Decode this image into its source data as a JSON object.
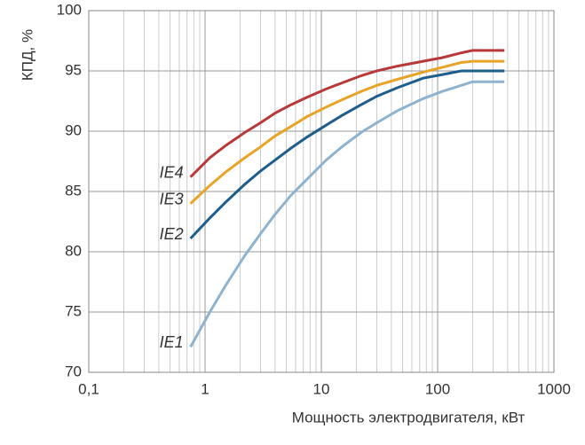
{
  "chart_data": {
    "type": "line",
    "x_label": "Мощность электродвигателя, кВт",
    "y_label": "КПД, %",
    "x": [
      0.75,
      1.1,
      1.5,
      2.2,
      3,
      4,
      5.5,
      7.5,
      11,
      15,
      22,
      30,
      45,
      75,
      110,
      160,
      200,
      375
    ],
    "series": [
      {
        "name": "IE1",
        "color": "#8fb3cf",
        "values": [
          72.1,
          75.0,
          77.2,
          79.7,
          81.5,
          83.1,
          84.7,
          86.0,
          87.6,
          88.7,
          89.9,
          90.7,
          91.7,
          92.7,
          93.3,
          93.8,
          94.1,
          94.1
        ]
      },
      {
        "name": "IE2",
        "color": "#1f5d8c",
        "values": [
          81.1,
          82.8,
          84.1,
          85.6,
          86.7,
          87.6,
          88.6,
          89.5,
          90.5,
          91.3,
          92.2,
          92.9,
          93.6,
          94.4,
          94.7,
          95.0,
          95.0,
          95.0
        ]
      },
      {
        "name": "IE3",
        "color": "#e8a427",
        "values": [
          84.0,
          85.5,
          86.6,
          87.8,
          88.7,
          89.6,
          90.4,
          91.2,
          92.0,
          92.6,
          93.3,
          93.8,
          94.3,
          94.9,
          95.3,
          95.7,
          95.8,
          95.8
        ]
      },
      {
        "name": "IE4",
        "color": "#b8393a",
        "values": [
          86.2,
          87.8,
          88.8,
          89.9,
          90.7,
          91.5,
          92.2,
          92.8,
          93.5,
          94.0,
          94.6,
          95.0,
          95.4,
          95.8,
          96.1,
          96.5,
          96.7,
          96.7
        ]
      }
    ],
    "xscale": "log",
    "xlim": [
      0.1,
      1000
    ],
    "ylim": [
      70,
      100
    ],
    "xticks": [
      {
        "value": 0.1,
        "label": "0,1"
      },
      1,
      10,
      100,
      1000
    ],
    "xminorticks": [
      0.2,
      0.3,
      0.4,
      0.5,
      0.6,
      0.7,
      0.8,
      0.9,
      2,
      3,
      4,
      5,
      6,
      7,
      8,
      9,
      20,
      30,
      40,
      50,
      60,
      70,
      80,
      90,
      200,
      300,
      400,
      500,
      600,
      700,
      800,
      900
    ],
    "yticks": [
      70,
      75,
      80,
      85,
      90,
      95,
      100
    ],
    "grid": true
  }
}
